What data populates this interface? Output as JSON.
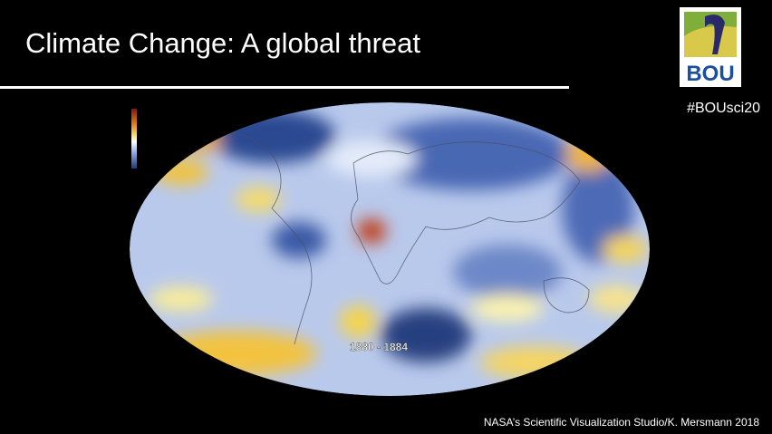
{
  "slide": {
    "title": "Climate Change: A global threat",
    "logo_text": "BOU",
    "hashtag": "#BOUsci20",
    "map_label": "1880 - 1884",
    "credit": "NASA’s Scientific Visualization Studio/K. Mersmann 2018"
  }
}
